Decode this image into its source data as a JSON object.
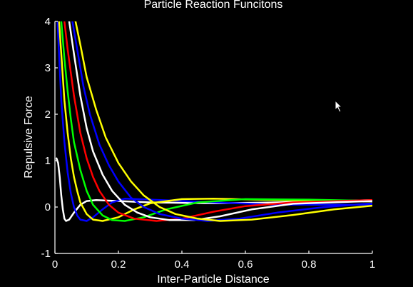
{
  "chart_data": {
    "type": "line",
    "title": "Particle Reaction Funcitons",
    "xlabel": "Inter-Particle Distance",
    "ylabel": "Repulsive Force",
    "xlim": [
      0,
      1
    ],
    "ylim": [
      -1,
      4
    ],
    "xticks": [
      0,
      0.2,
      0.4,
      0.6,
      0.8,
      1
    ],
    "xtick_labels": [
      "0",
      "0.2",
      "0.4",
      "0.6",
      "0.8",
      "1"
    ],
    "yticks": [
      -1,
      0,
      1,
      2,
      3,
      4
    ],
    "ytick_labels": [
      "-1",
      "0",
      "1",
      "2",
      "3",
      "4"
    ],
    "grid": false,
    "background": "#000000",
    "series": [
      {
        "color": "#ffffff",
        "values": [
          [
            0.005,
            1.05
          ],
          [
            0.01,
            0.95
          ],
          [
            0.015,
            0.65
          ],
          [
            0.02,
            0.25
          ],
          [
            0.025,
            -0.05
          ],
          [
            0.03,
            -0.25
          ],
          [
            0.035,
            -0.3
          ],
          [
            0.045,
            -0.27
          ],
          [
            0.06,
            -0.12
          ],
          [
            0.08,
            0.05
          ],
          [
            0.1,
            0.13
          ],
          [
            0.13,
            0.15
          ],
          [
            0.2,
            0.13
          ],
          [
            0.3,
            0.1
          ],
          [
            0.5,
            0.08
          ],
          [
            0.7,
            0.1
          ],
          [
            1,
            0.15
          ]
        ]
      },
      {
        "color": "#0000ff",
        "values": [
          [
            0.008,
            4
          ],
          [
            0.015,
            3.0
          ],
          [
            0.02,
            2.3
          ],
          [
            0.03,
            1.4
          ],
          [
            0.04,
            0.75
          ],
          [
            0.05,
            0.3
          ],
          [
            0.06,
            0.0
          ],
          [
            0.07,
            -0.18
          ],
          [
            0.08,
            -0.27
          ],
          [
            0.1,
            -0.3
          ],
          [
            0.12,
            -0.22
          ],
          [
            0.15,
            -0.05
          ],
          [
            0.18,
            0.1
          ],
          [
            0.22,
            0.18
          ],
          [
            0.3,
            0.16
          ],
          [
            0.5,
            0.1
          ],
          [
            0.7,
            0.05
          ],
          [
            1,
            0.05
          ]
        ]
      },
      {
        "color": "#ffff00",
        "values": [
          [
            0.013,
            4
          ],
          [
            0.02,
            3.3
          ],
          [
            0.03,
            2.3
          ],
          [
            0.04,
            1.6
          ],
          [
            0.05,
            1.05
          ],
          [
            0.06,
            0.65
          ],
          [
            0.07,
            0.35
          ],
          [
            0.08,
            0.1
          ],
          [
            0.1,
            -0.15
          ],
          [
            0.12,
            -0.27
          ],
          [
            0.15,
            -0.3
          ],
          [
            0.2,
            -0.22
          ],
          [
            0.25,
            -0.05
          ],
          [
            0.3,
            0.08
          ],
          [
            0.4,
            0.17
          ],
          [
            0.5,
            0.18
          ],
          [
            0.7,
            0.15
          ],
          [
            1,
            0.12
          ]
        ]
      },
      {
        "color": "#00ff00",
        "values": [
          [
            0.02,
            4
          ],
          [
            0.03,
            3.2
          ],
          [
            0.04,
            2.5
          ],
          [
            0.05,
            1.9
          ],
          [
            0.06,
            1.4
          ],
          [
            0.08,
            0.8
          ],
          [
            0.1,
            0.35
          ],
          [
            0.12,
            0.05
          ],
          [
            0.15,
            -0.18
          ],
          [
            0.18,
            -0.28
          ],
          [
            0.22,
            -0.3
          ],
          [
            0.28,
            -0.22
          ],
          [
            0.35,
            -0.05
          ],
          [
            0.45,
            0.1
          ],
          [
            0.6,
            0.17
          ],
          [
            0.8,
            0.16
          ],
          [
            1,
            0.13
          ]
        ]
      },
      {
        "color": "#ff0000",
        "values": [
          [
            0.03,
            4
          ],
          [
            0.04,
            3.4
          ],
          [
            0.06,
            2.4
          ],
          [
            0.08,
            1.6
          ],
          [
            0.1,
            1.05
          ],
          [
            0.12,
            0.65
          ],
          [
            0.14,
            0.35
          ],
          [
            0.17,
            0.05
          ],
          [
            0.2,
            -0.12
          ],
          [
            0.25,
            -0.25
          ],
          [
            0.32,
            -0.3
          ],
          [
            0.4,
            -0.25
          ],
          [
            0.5,
            -0.1
          ],
          [
            0.6,
            0.02
          ],
          [
            0.75,
            0.1
          ],
          [
            1,
            0.15
          ]
        ]
      },
      {
        "color": "#ffffff",
        "values": [
          [
            0.045,
            4
          ],
          [
            0.06,
            3.3
          ],
          [
            0.08,
            2.4
          ],
          [
            0.1,
            1.7
          ],
          [
            0.12,
            1.2
          ],
          [
            0.15,
            0.7
          ],
          [
            0.18,
            0.35
          ],
          [
            0.22,
            0.05
          ],
          [
            0.26,
            -0.12
          ],
          [
            0.3,
            -0.22
          ],
          [
            0.36,
            -0.28
          ],
          [
            0.44,
            -0.28
          ],
          [
            0.52,
            -0.2
          ],
          [
            0.62,
            -0.05
          ],
          [
            0.75,
            0.07
          ],
          [
            1,
            0.13
          ]
        ]
      },
      {
        "color": "#0000ff",
        "values": [
          [
            0.055,
            4
          ],
          [
            0.07,
            3.4
          ],
          [
            0.09,
            2.6
          ],
          [
            0.11,
            2.0
          ],
          [
            0.14,
            1.35
          ],
          [
            0.17,
            0.9
          ],
          [
            0.2,
            0.55
          ],
          [
            0.24,
            0.2
          ],
          [
            0.28,
            0.0
          ],
          [
            0.33,
            -0.15
          ],
          [
            0.4,
            -0.25
          ],
          [
            0.48,
            -0.3
          ],
          [
            0.58,
            -0.25
          ],
          [
            0.7,
            -0.12
          ],
          [
            0.85,
            0.0
          ],
          [
            1,
            0.08
          ]
        ]
      },
      {
        "color": "#ffff00",
        "values": [
          [
            0.065,
            4
          ],
          [
            0.08,
            3.5
          ],
          [
            0.1,
            2.8
          ],
          [
            0.13,
            2.1
          ],
          [
            0.16,
            1.5
          ],
          [
            0.2,
            0.95
          ],
          [
            0.24,
            0.55
          ],
          [
            0.28,
            0.25
          ],
          [
            0.33,
            0.0
          ],
          [
            0.38,
            -0.15
          ],
          [
            0.45,
            -0.25
          ],
          [
            0.52,
            -0.3
          ],
          [
            0.62,
            -0.27
          ],
          [
            0.75,
            -0.17
          ],
          [
            0.88,
            -0.05
          ],
          [
            1,
            0.03
          ]
        ]
      }
    ]
  }
}
